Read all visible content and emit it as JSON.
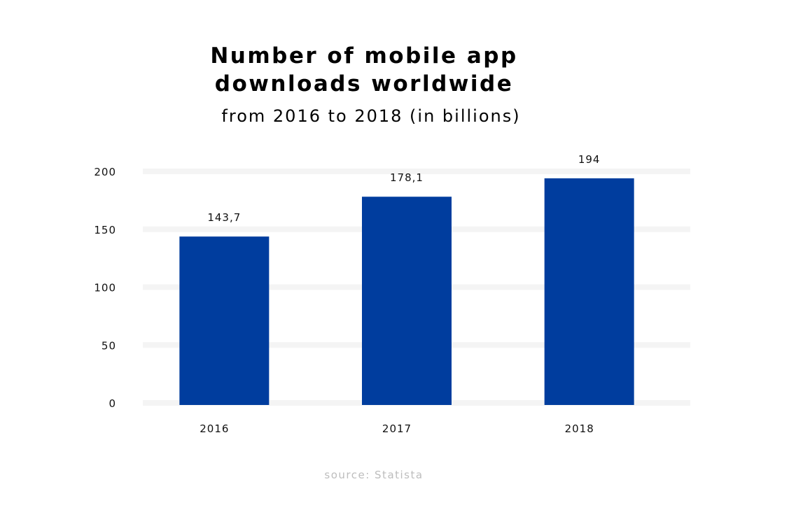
{
  "chart_data": {
    "type": "bar",
    "title_lines": [
      "Number of mobile app",
      "downloads worldwide"
    ],
    "subtitle": "from 2016 to 2018 (in billions)",
    "source": "source: Statista",
    "categories": [
      "2016",
      "2017",
      "2018"
    ],
    "values": [
      143.7,
      178.1,
      194
    ],
    "value_labels": [
      "143,7",
      "178,1",
      "194"
    ],
    "yticks": [
      0,
      50,
      100,
      150,
      200
    ],
    "ylim": [
      0,
      200
    ],
    "xlabel": "",
    "ylabel": "",
    "grid": true,
    "bar_color": "#003d9e",
    "grid_color": "#f4f4f4"
  }
}
